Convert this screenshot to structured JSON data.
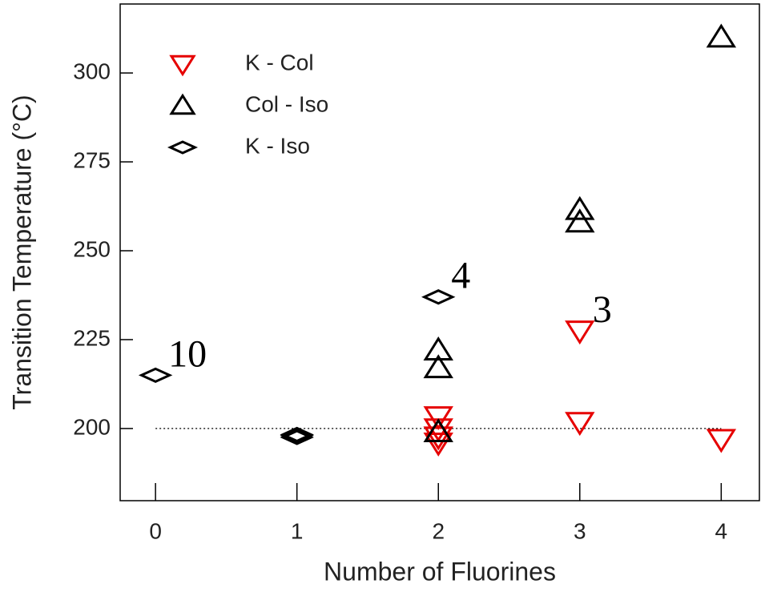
{
  "chart_data": {
    "type": "scatter",
    "xlabel": "Number of Fluorines",
    "ylabel": "Transition Temperature (°C)",
    "xlim": [
      -0.25,
      4.27
    ],
    "xticks": [
      0,
      1,
      2,
      3,
      4
    ],
    "ylim": [
      179.7,
      319.4
    ],
    "yticks": [
      200,
      225,
      250,
      275,
      300
    ],
    "reference_line_y": 200,
    "legend": "upper left",
    "series": [
      {
        "name": "K - Col",
        "color": "#e60000",
        "marker": "triangle-down",
        "x": [
          2,
          2,
          2,
          2,
          3,
          3,
          4
        ],
        "values": [
          203.4,
          200,
          197.7,
          196,
          227.5,
          201.8,
          197
        ]
      },
      {
        "name": "Col - Iso",
        "color": "#000000",
        "marker": "triangle-up",
        "x": [
          2,
          2,
          2,
          3,
          3,
          4
        ],
        "values": [
          222,
          217,
          199,
          261.5,
          258,
          310
        ]
      },
      {
        "name": "K - Iso",
        "color": "#000000",
        "marker": "diamond",
        "x": [
          0,
          1,
          1,
          1,
          2
        ],
        "values": [
          215,
          197.5,
          198,
          198.3,
          237
        ]
      }
    ],
    "annotations": [
      {
        "text": "10",
        "x": 0,
        "y": 215
      },
      {
        "text": "4",
        "x": 2,
        "y": 237
      },
      {
        "text": "3",
        "x": 3,
        "y": 227.5
      }
    ]
  }
}
